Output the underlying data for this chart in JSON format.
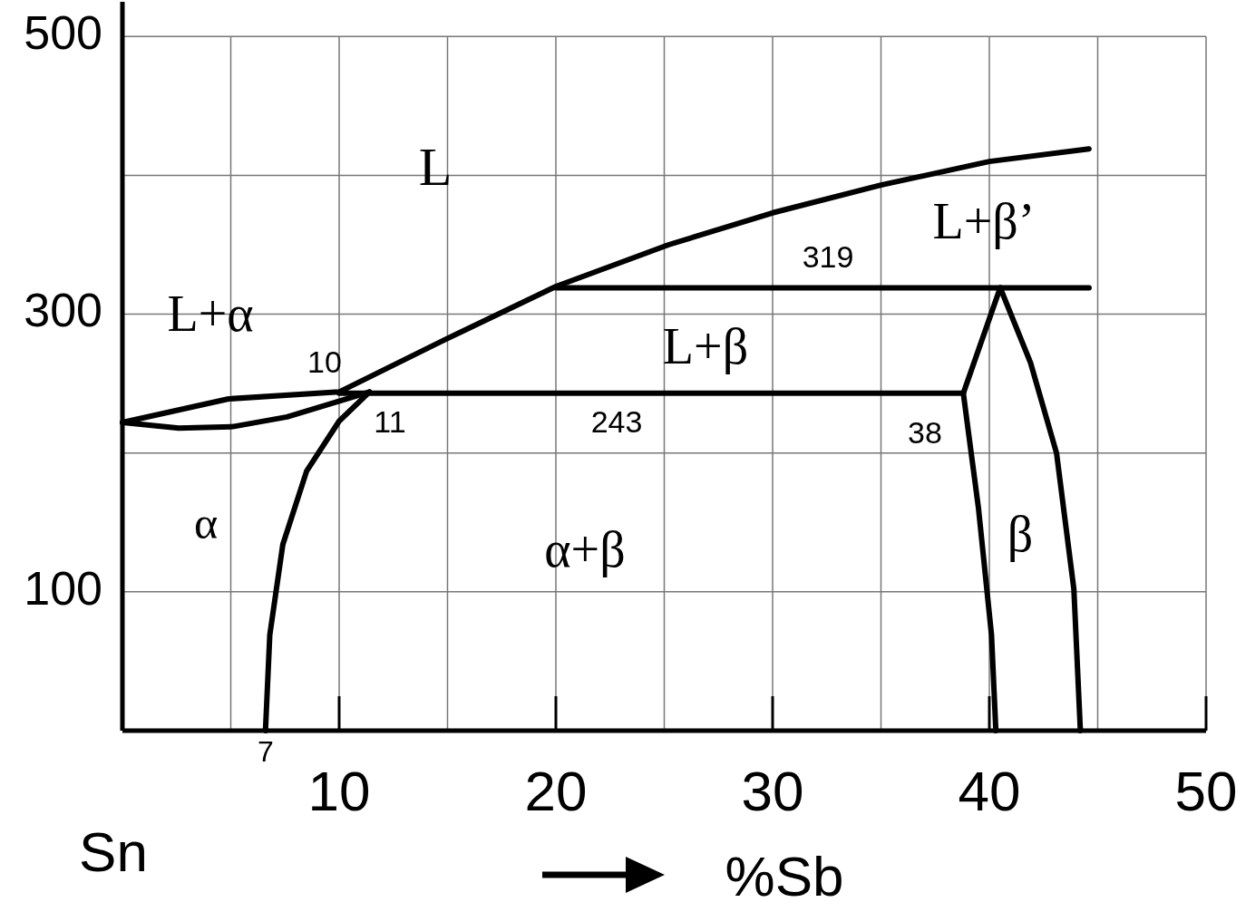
{
  "chart_data": {
    "type": "line",
    "xlabel": "%Sb",
    "xlim": [
      0,
      50
    ],
    "ylim": [
      0,
      525
    ],
    "xticks": [
      {
        "value": 5,
        "label": null
      },
      10,
      {
        "value": 15,
        "label": null
      },
      20,
      {
        "value": 25,
        "label": null
      },
      30,
      {
        "value": 35,
        "label": null
      },
      40,
      {
        "value": 45,
        "label": null
      },
      50
    ],
    "yticks": [
      100,
      {
        "value": 200,
        "label": null
      },
      300,
      {
        "value": 400,
        "label": null
      },
      500
    ],
    "grid": true,
    "marker": "none",
    "line_style": "solid",
    "series": [
      {
        "color": "#000000",
        "x": [
          0,
          4.9,
          10,
          14.8,
          20,
          25.2,
          30,
          35,
          40,
          44.6
        ],
        "values": [
          222,
          239,
          244,
          281,
          320,
          350,
          373,
          393,
          410,
          419
        ]
      },
      {
        "color": "#000000",
        "x": [
          0,
          2.6,
          5.1,
          7.6,
          11.4
        ],
        "values": [
          222,
          218,
          219,
          226,
          244
        ]
      },
      {
        "color": "#000000",
        "x": [
          11.4,
          10,
          8.5,
          7.4,
          6.8,
          6.6
        ],
        "values": [
          244,
          223,
          187,
          134,
          69,
          0
        ]
      },
      {
        "color": "#000000",
        "x": [
          10,
          38.8
        ],
        "values": [
          243,
          243
        ]
      },
      {
        "color": "#000000",
        "x": [
          20,
          44.6
        ],
        "values": [
          319,
          319
        ]
      },
      {
        "color": "#000000",
        "x": [
          38.8,
          40.5
        ],
        "values": [
          243,
          319
        ]
      },
      {
        "color": "#000000",
        "x": [
          38.8,
          39.5,
          40.1,
          40.3
        ],
        "values": [
          243,
          160,
          69,
          0
        ]
      },
      {
        "color": "#000000",
        "x": [
          40.5,
          41.9,
          43.1,
          43.9,
          44.2
        ],
        "values": [
          319,
          265,
          200,
          102,
          0
        ]
      }
    ],
    "annotations": [
      "L",
      "L+α",
      "L+β’",
      "L+β",
      "α",
      "α+β",
      "β",
      "319",
      "10",
      "11",
      "243",
      "38",
      "7",
      "Sn"
    ]
  }
}
